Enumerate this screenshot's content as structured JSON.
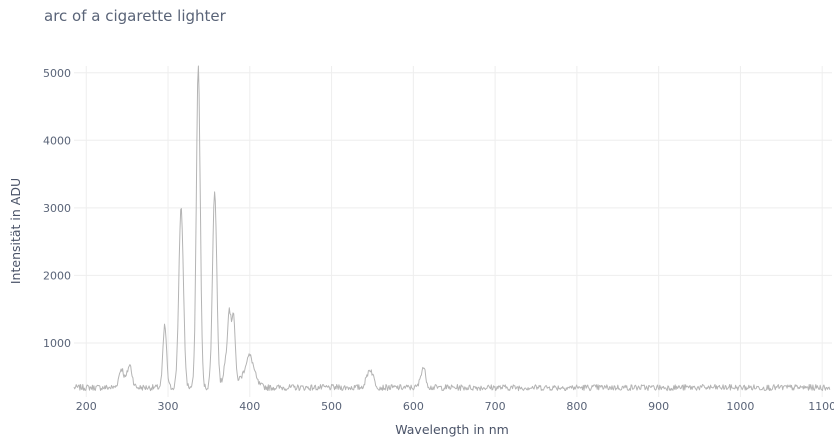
{
  "chart_data": {
    "type": "line",
    "title": "arc of a cigarette lighter",
    "xlabel": "Wavelength in nm",
    "ylabel": "Intensität in ADU",
    "xlim": [
      185,
      1112
    ],
    "ylim": [
      200,
      5100
    ],
    "xticks": [
      200,
      300,
      400,
      500,
      600,
      700,
      800,
      900,
      1000,
      1100
    ],
    "yticks": [
      1000,
      2000,
      3000,
      4000,
      5000
    ],
    "grid": true,
    "color": "#b4b4b4",
    "baseline": 340,
    "noise": 45,
    "peaks": [
      {
        "x": 296,
        "y": 1250,
        "w": 2.2
      },
      {
        "x": 316,
        "y": 2980,
        "w": 2.8
      },
      {
        "x": 337,
        "y": 5080,
        "w": 2.4
      },
      {
        "x": 357,
        "y": 3260,
        "w": 2.6
      },
      {
        "x": 371,
        "y": 700,
        "w": 3.0
      },
      {
        "x": 375,
        "y": 1270,
        "w": 2.0
      },
      {
        "x": 380,
        "y": 1340,
        "w": 2.0
      },
      {
        "x": 400,
        "y": 720,
        "w": 5.0
      },
      {
        "x": 243,
        "y": 620,
        "w": 3.0
      },
      {
        "x": 253,
        "y": 670,
        "w": 3.0
      },
      {
        "x": 547,
        "y": 610,
        "w": 4.0
      },
      {
        "x": 612,
        "y": 640,
        "w": 3.0
      }
    ]
  }
}
